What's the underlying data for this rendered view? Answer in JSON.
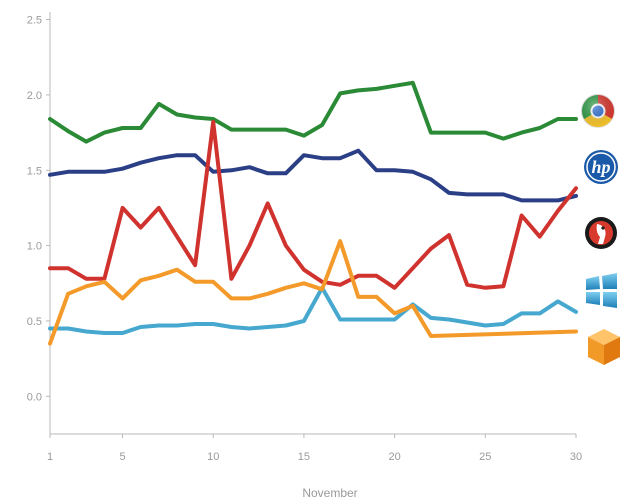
{
  "chart_data": {
    "type": "line",
    "xlabel": "November",
    "ylabel": "",
    "xlim": [
      1,
      30
    ],
    "ylim": [
      -0.25,
      2.55
    ],
    "xticks": [
      1,
      5,
      10,
      15,
      20,
      25,
      30
    ],
    "xtick_labels": [
      "1",
      "5",
      "10",
      "15",
      "20",
      "25",
      "30"
    ],
    "yticks": [
      0,
      0.5,
      1,
      1.5,
      2,
      2.5
    ],
    "ytick_labels": [
      "0.0",
      "0.5",
      "1.0",
      "1.5",
      "2.0",
      "2.5"
    ],
    "grid": false,
    "legend": "right, icons at line ends",
    "series": [
      {
        "icon": "google-chrome-icon",
        "color": "#2a8a35",
        "x": [
          1,
          2,
          3,
          4,
          5,
          6,
          7,
          8,
          9,
          10,
          11,
          12,
          13,
          14,
          15,
          16,
          17,
          18,
          19,
          20,
          21,
          22,
          23,
          24,
          25,
          26,
          27,
          28,
          29,
          30
        ],
        "y": [
          1.84,
          1.76,
          1.69,
          1.75,
          1.78,
          1.78,
          1.94,
          1.87,
          1.85,
          1.84,
          1.77,
          1.77,
          1.77,
          1.77,
          1.73,
          1.8,
          2.01,
          2.03,
          2.04,
          2.06,
          2.08,
          1.75,
          1.75,
          1.75,
          1.75,
          1.71,
          1.75,
          1.78,
          1.84,
          1.84
        ]
      },
      {
        "icon": "hp-icon",
        "color": "#2b3f86",
        "x": [
          1,
          2,
          3,
          4,
          5,
          6,
          7,
          8,
          9,
          10,
          11,
          12,
          13,
          14,
          15,
          16,
          17,
          18,
          19,
          20,
          21,
          22,
          23,
          24,
          25,
          26,
          27,
          28,
          29,
          30
        ],
        "y": [
          1.47,
          1.49,
          1.49,
          1.49,
          1.51,
          1.55,
          1.58,
          1.6,
          1.6,
          1.49,
          1.5,
          1.52,
          1.48,
          1.48,
          1.6,
          1.58,
          1.58,
          1.63,
          1.5,
          1.5,
          1.49,
          1.44,
          1.35,
          1.34,
          1.34,
          1.34,
          1.3,
          1.3,
          1.3,
          1.33
        ]
      },
      {
        "icon": "mobile-app-icon",
        "color": "#d0322e",
        "x": [
          1,
          2,
          3,
          4,
          5,
          6,
          7,
          8,
          9,
          10,
          11,
          12,
          13,
          14,
          15,
          16,
          17,
          18,
          19,
          20,
          21,
          22,
          23,
          24,
          25,
          26,
          27,
          28,
          29,
          30
        ],
        "y": [
          0.85,
          0.85,
          0.78,
          0.78,
          1.25,
          1.12,
          1.25,
          1.06,
          0.87,
          1.82,
          0.78,
          1.0,
          1.28,
          1.0,
          0.84,
          0.76,
          0.74,
          0.8,
          0.8,
          0.72,
          0.85,
          0.98,
          1.07,
          0.74,
          0.72,
          0.73,
          1.2,
          1.06,
          1.23,
          1.38
        ]
      },
      {
        "icon": "windows-icon",
        "color": "#46a8cf",
        "x": [
          1,
          2,
          3,
          4,
          5,
          6,
          7,
          8,
          9,
          10,
          11,
          12,
          13,
          14,
          15,
          16,
          17,
          18,
          19,
          20,
          21,
          22,
          23,
          24,
          25,
          26,
          27,
          28,
          29,
          30
        ],
        "y": [
          0.45,
          0.45,
          0.43,
          0.42,
          0.42,
          0.46,
          0.47,
          0.47,
          0.48,
          0.48,
          0.46,
          0.45,
          0.46,
          0.47,
          0.5,
          0.72,
          0.51,
          0.51,
          0.51,
          0.51,
          0.61,
          0.52,
          0.51,
          0.49,
          0.47,
          0.48,
          0.55,
          0.55,
          0.63,
          0.56
        ]
      },
      {
        "icon": "amazon-box-icon",
        "color": "#f39a2b",
        "x": [
          1,
          2,
          3,
          4,
          5,
          6,
          7,
          8,
          9,
          10,
          11,
          12,
          13,
          14,
          15,
          16,
          17,
          18,
          19,
          20,
          21,
          22,
          30
        ],
        "y": [
          0.35,
          0.68,
          0.73,
          0.76,
          0.65,
          0.77,
          0.8,
          0.84,
          0.76,
          0.76,
          0.65,
          0.65,
          0.68,
          0.72,
          0.75,
          0.71,
          1.03,
          0.66,
          0.66,
          0.55,
          0.6,
          0.4,
          0.43
        ]
      }
    ]
  }
}
